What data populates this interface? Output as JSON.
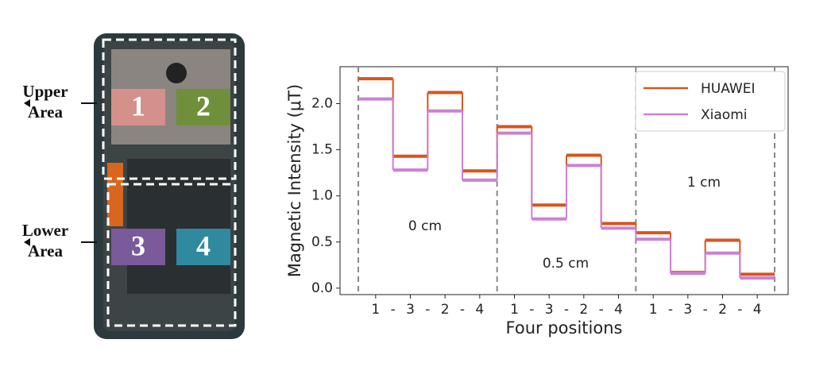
{
  "phone": {
    "areas": [
      {
        "lines": [
          "Upper",
          "Area"
        ]
      },
      {
        "lines": [
          "Lower",
          "Area"
        ]
      }
    ],
    "regions": [
      {
        "label": "1",
        "color": "#d4908a"
      },
      {
        "label": "2",
        "color": "#6f8f3a"
      },
      {
        "label": "3",
        "color": "#7a5a9a"
      },
      {
        "label": "4",
        "color": "#2f8aa0"
      }
    ]
  },
  "chart_data": {
    "type": "step",
    "ylabel": "Magnetic Intensity (μT)",
    "xlabel": "Four positions",
    "categories": [
      "1",
      "3",
      "2",
      "4",
      "1",
      "3",
      "2",
      "4",
      "1",
      "3",
      "2",
      "4"
    ],
    "separator": "-",
    "annotations": [
      "0 cm",
      "0.5 cm",
      "1 cm"
    ],
    "series": [
      {
        "name": "HUAWEI",
        "color": "#d9541a",
        "values": [
          2.27,
          1.43,
          2.12,
          1.27,
          1.75,
          0.9,
          1.44,
          0.7,
          0.6,
          0.17,
          0.52,
          0.15
        ]
      },
      {
        "name": "Xiaomi",
        "color": "#cc80d6",
        "values": [
          2.05,
          1.28,
          1.92,
          1.17,
          1.68,
          0.75,
          1.33,
          0.65,
          0.53,
          0.16,
          0.38,
          0.11
        ]
      }
    ],
    "ylim": [
      -0.07,
      2.4
    ],
    "yticks": [
      {
        "value": 0,
        "label": "0.0"
      },
      0.5,
      {
        "value": 1,
        "label": "1.0"
      },
      1.5,
      {
        "value": 2,
        "label": "2.0"
      }
    ],
    "legend": "upper right"
  }
}
